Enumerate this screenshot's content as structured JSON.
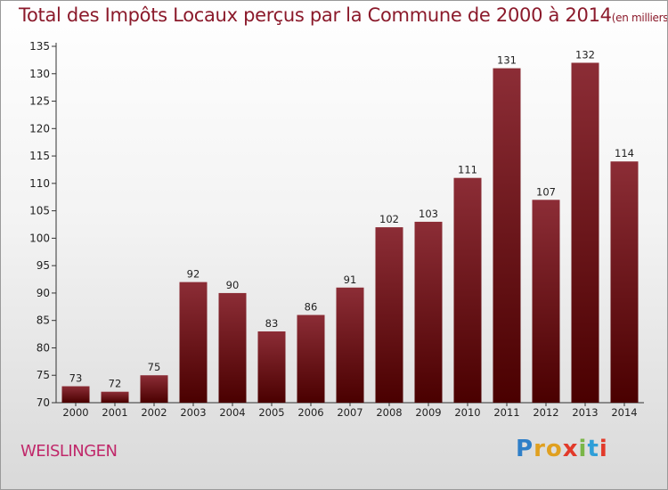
{
  "header": {
    "title": "Total des Impôts Locaux perçus par la Commune de 2000 à 2014",
    "unit": "(en milliers d'€)"
  },
  "footer": {
    "commune": "WEISLINGEN",
    "logo": "Proxiti"
  },
  "colors": {
    "title": "#8b1a2b",
    "bar_top": "#8c2d36",
    "bar_bottom": "#4a0000",
    "commune": "#c0286a"
  },
  "chart_data": {
    "type": "bar",
    "categories": [
      "2000",
      "2001",
      "2002",
      "2003",
      "2004",
      "2005",
      "2006",
      "2007",
      "2008",
      "2009",
      "2010",
      "2011",
      "2012",
      "2013",
      "2014"
    ],
    "values": [
      73,
      72,
      75,
      92,
      90,
      83,
      86,
      91,
      102,
      103,
      111,
      131,
      107,
      132,
      114
    ],
    "title": "Total des Impôts Locaux perçus par la Commune de 2000 à 2014",
    "xlabel": "",
    "ylabel": "",
    "ylim": [
      70,
      135
    ],
    "yticks": [
      70,
      75,
      80,
      85,
      90,
      95,
      100,
      105,
      110,
      115,
      120,
      125,
      130,
      135
    ],
    "grid": false,
    "data_labels": true
  }
}
